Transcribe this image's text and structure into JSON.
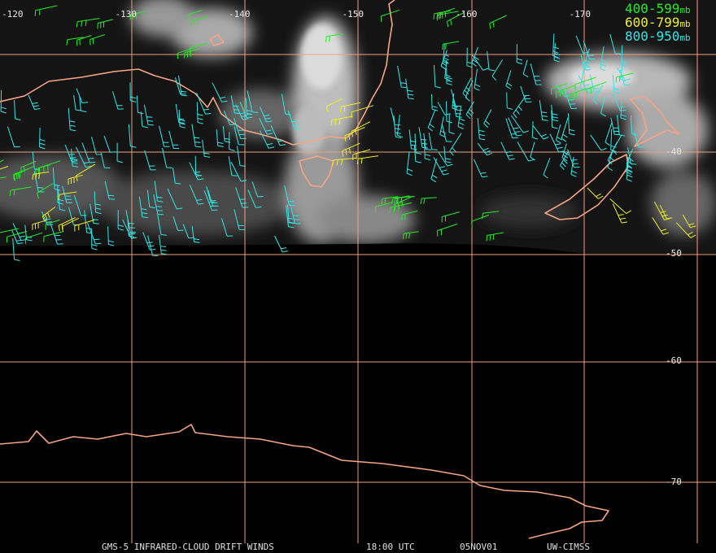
{
  "map": {
    "lon_labels": [
      "-120",
      "-130",
      "-140",
      "-150",
      "-160",
      "-170"
    ],
    "lat_labels": [
      "-40",
      "-50",
      "-60",
      "-70"
    ],
    "legend": [
      {
        "range": "400-599",
        "unit": "mb",
        "color": "#22ee22"
      },
      {
        "range": "600-799",
        "unit": "mb",
        "color": "#f0f020"
      },
      {
        "range": "800-950",
        "unit": "mb",
        "color": "#30e8e8"
      }
    ],
    "footer": {
      "product": "GMS-5 INFRARED-CLOUD DRIFT WINDS",
      "time": "18:00 UTC",
      "date": "05NOV01",
      "source": "UW-CIMSS"
    }
  }
}
